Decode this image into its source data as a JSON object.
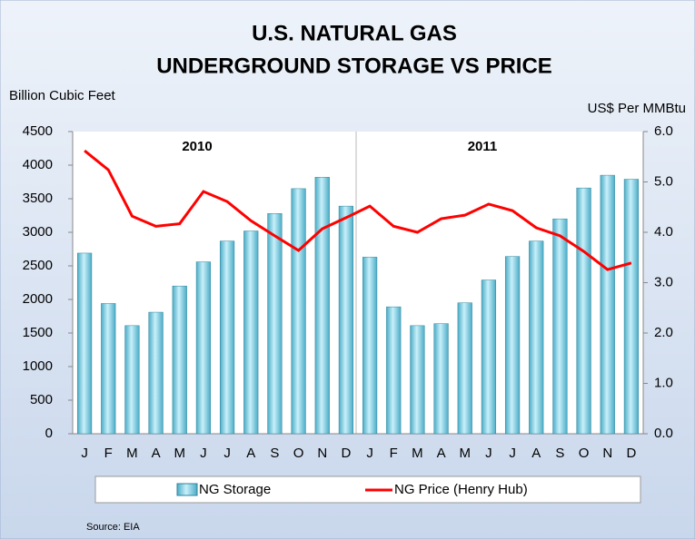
{
  "chart_data": {
    "type": "bar",
    "title": [
      "U.S. NATURAL GAS",
      "UNDERGROUND STORAGE VS PRICE"
    ],
    "y_label": "Billion Cubic Feet",
    "y2_label": "US$ Per MMBtu",
    "annotations": [
      "2010",
      "2011"
    ],
    "source": "Source: EIA",
    "categories": [
      "J",
      "F",
      "M",
      "A",
      "M",
      "J",
      "J",
      "A",
      "S",
      "O",
      "N",
      "D",
      "J",
      "F",
      "M",
      "A",
      "M",
      "J",
      "J",
      "A",
      "S",
      "O",
      "N",
      "D"
    ],
    "series": [
      {
        "name": "NG Storage",
        "type": "bar",
        "color": "#4bacc6",
        "values": [
          2690,
          1940,
          1610,
          1810,
          2200,
          2560,
          2870,
          3020,
          3280,
          3650,
          3820,
          3390,
          2630,
          1890,
          1610,
          1640,
          1950,
          2290,
          2640,
          2870,
          3200,
          3660,
          3850,
          3790
        ]
      },
      {
        "name": "NG Price (Henry Hub)",
        "type": "line",
        "axis": "y2",
        "color": "#ff0000",
        "values": [
          5.62,
          5.24,
          4.32,
          4.12,
          4.17,
          4.81,
          4.61,
          4.23,
          3.93,
          3.64,
          4.07,
          4.29,
          4.52,
          4.12,
          4.0,
          4.27,
          4.34,
          4.56,
          4.43,
          4.09,
          3.93,
          3.62,
          3.26,
          3.39
        ]
      }
    ],
    "ylim": [
      0,
      4500
    ],
    "yticks": [
      0,
      500,
      1000,
      1500,
      2000,
      2500,
      3000,
      3500,
      4000,
      4500
    ],
    "y2lim": [
      0,
      6
    ],
    "y2ticks": [
      {
        "value": 0,
        "label": "0.0"
      },
      {
        "value": 1,
        "label": "1.0"
      },
      {
        "value": 2,
        "label": "2.0"
      },
      {
        "value": 3,
        "label": "3.0"
      },
      {
        "value": 4,
        "label": "4.0"
      },
      {
        "value": 5,
        "label": "5.0"
      },
      {
        "value": 6,
        "label": "6.0"
      }
    ],
    "legend": "bottom"
  }
}
